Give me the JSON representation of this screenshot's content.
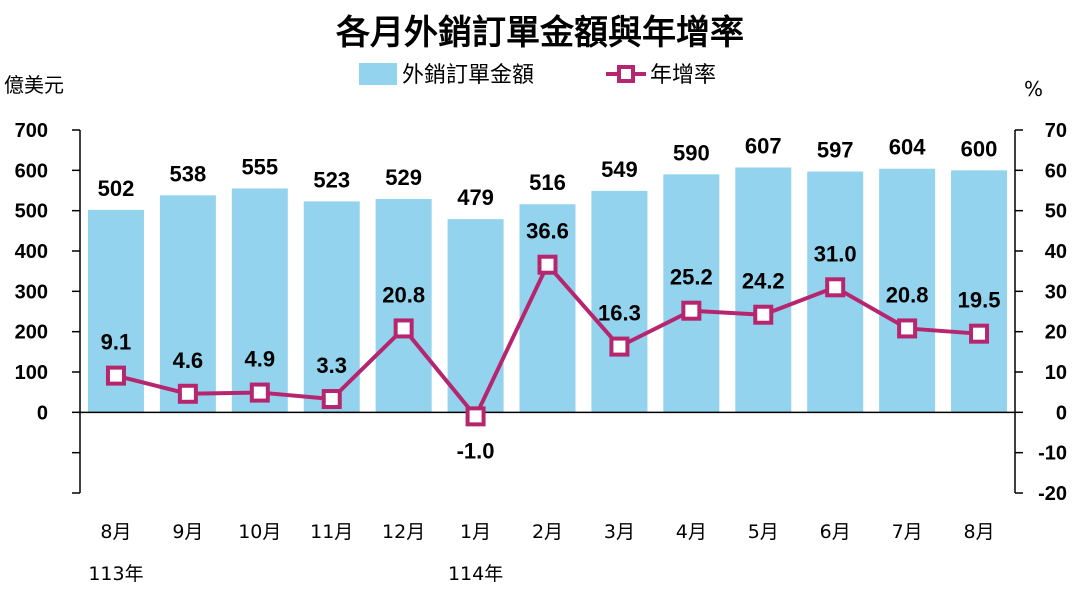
{
  "chart_data": {
    "type": "bar+line",
    "title": "各月外銷訂單金額與年增率",
    "categories": [
      "8月",
      "9月",
      "10月",
      "11月",
      "12月",
      "1月",
      "2月",
      "3月",
      "4月",
      "5月",
      "6月",
      "7月",
      "8月"
    ],
    "year_labels": [
      {
        "index": 0,
        "text": "113年"
      },
      {
        "index": 5,
        "text": "114年"
      }
    ],
    "series": [
      {
        "name": "外銷訂單金額",
        "type": "bar",
        "axis": "left",
        "color": "#93D3EE",
        "values": [
          502,
          538,
          555,
          523,
          529,
          479,
          516,
          549,
          590,
          607,
          597,
          604,
          600
        ]
      },
      {
        "name": "年增率",
        "type": "line",
        "axis": "right",
        "color": "#B5266E",
        "values": [
          9.1,
          4.6,
          4.9,
          3.3,
          20.8,
          -1.0,
          36.6,
          16.3,
          25.2,
          24.2,
          31.0,
          20.8,
          19.5
        ]
      }
    ],
    "y_left": {
      "label": "億美元",
      "range": [
        -200,
        700
      ],
      "ticks": [
        700,
        600,
        500,
        400,
        300,
        200,
        100,
        0,
        "",
        ""
      ]
    },
    "y_right": {
      "label": "%",
      "range": [
        -20,
        70
      ],
      "ticks": [
        70,
        60,
        50,
        40,
        30,
        20,
        10,
        0,
        -10,
        -20
      ]
    },
    "legend": "top-center"
  }
}
